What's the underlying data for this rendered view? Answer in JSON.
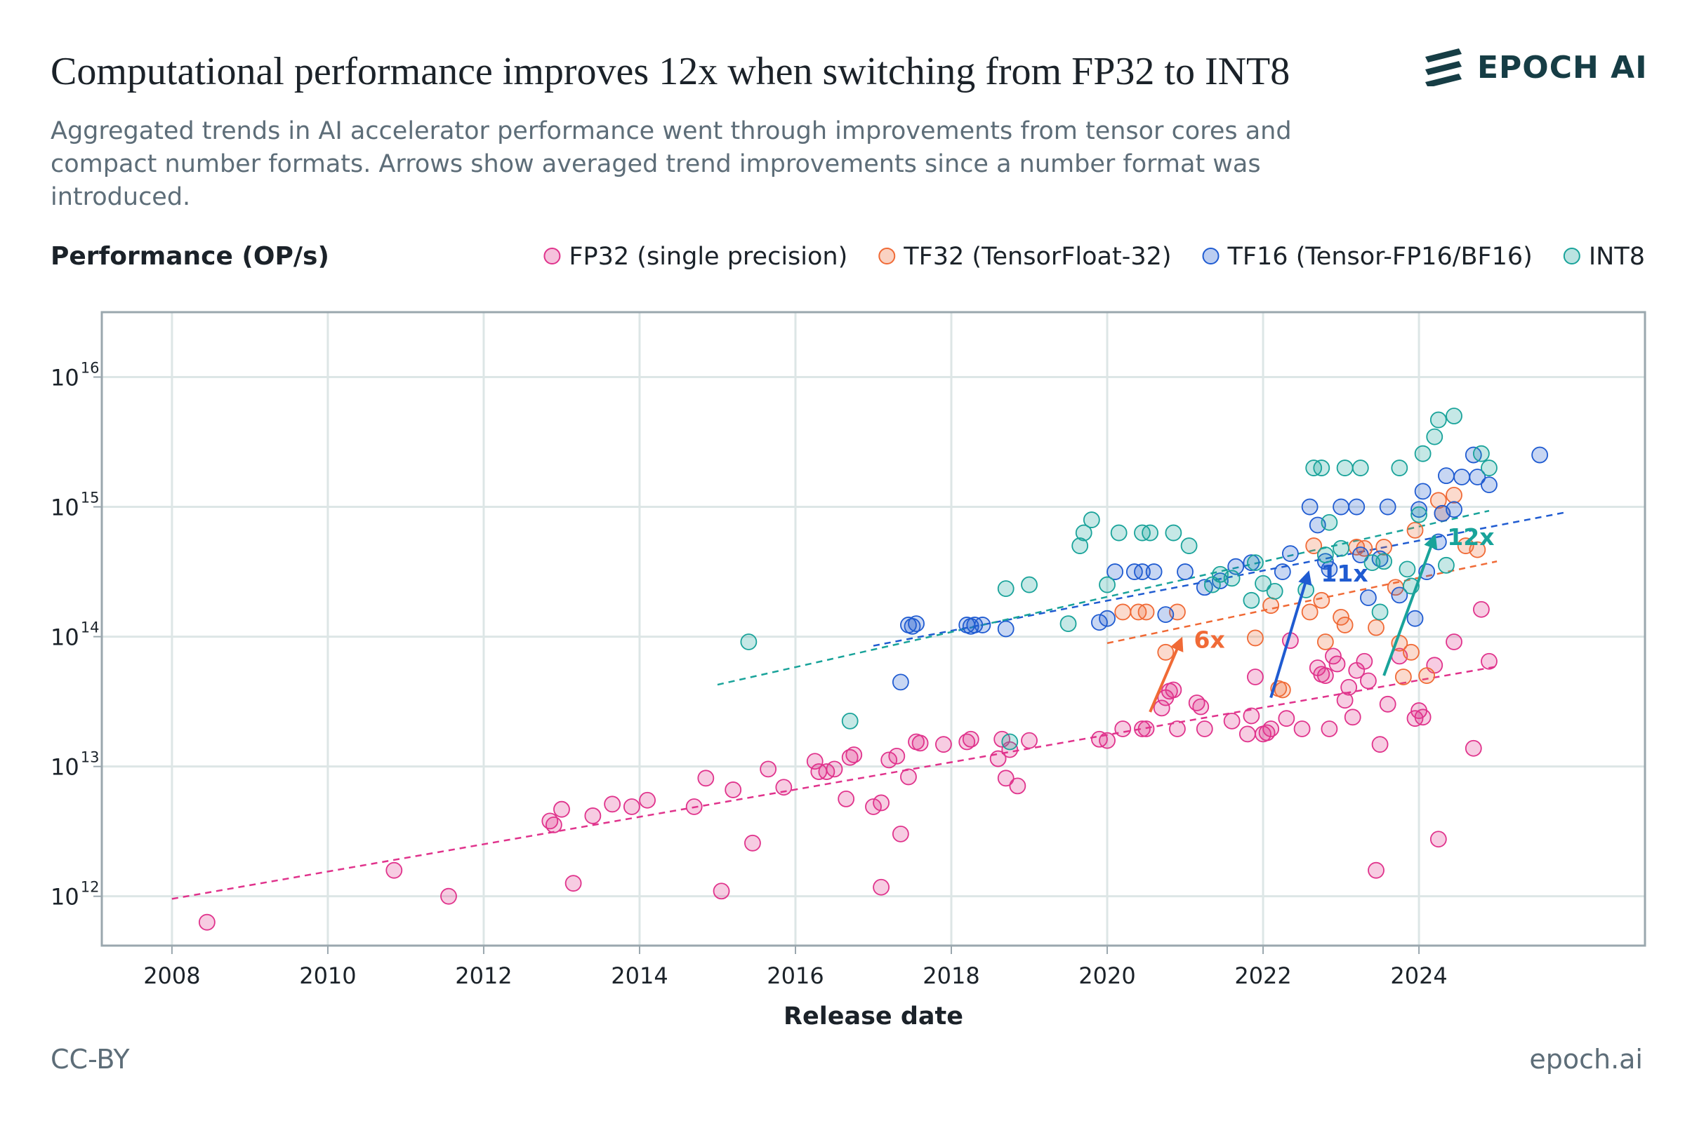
{
  "header": {
    "title": "Computational performance improves 12x when switching from FP32 to INT8",
    "subtitle": "Aggregated trends in AI accelerator performance went through improvements from tensor cores and compact number formats. Arrows show averaged trend improvements since a number format was introduced.",
    "brand": "EPOCH AI"
  },
  "footer": {
    "license": "CC-BY",
    "site": "epoch.ai"
  },
  "colors": {
    "FP32": "#e0338c",
    "TF32": "#f06a36",
    "TF16": "#1f5bd1",
    "INT8": "#19a39a",
    "grid": "#dde6e6",
    "axis": "#9aa7ae",
    "brand": "#163d45"
  },
  "chart_data": {
    "type": "scatter",
    "title": "Computational performance improves 12x when switching from FP32 to INT8",
    "xlabel": "Release date",
    "ylabel": "Performance (OP/s)",
    "yscale": "log",
    "xlim": [
      2007.1,
      2026.9
    ],
    "ylim_log10": [
      11.62,
      16.5
    ],
    "xticks": [
      2008,
      2010,
      2012,
      2014,
      2016,
      2018,
      2020,
      2022,
      2024
    ],
    "xtick_labels": [
      "2008",
      "2010",
      "2012",
      "2014",
      "2016",
      "2018",
      "2020",
      "2022",
      "2024"
    ],
    "yticks_log10": [
      12,
      13,
      14,
      15,
      16
    ],
    "ytick_base": "10",
    "ytick_exponents": [
      "12",
      "13",
      "14",
      "15",
      "16"
    ],
    "grid": true,
    "legend_position": "top-right",
    "series": [
      {
        "name": "FP32 (single precision)",
        "key": "FP32",
        "points_log10": [
          [
            2008.45,
            11.8
          ],
          [
            2010.85,
            12.2
          ],
          [
            2011.55,
            12.0
          ],
          [
            2012.85,
            12.58
          ],
          [
            2012.9,
            12.55
          ],
          [
            2013.0,
            12.67
          ],
          [
            2013.15,
            12.1
          ],
          [
            2013.4,
            12.62
          ],
          [
            2013.65,
            12.71
          ],
          [
            2013.9,
            12.69
          ],
          [
            2014.1,
            12.74
          ],
          [
            2014.7,
            12.69
          ],
          [
            2014.85,
            12.91
          ],
          [
            2015.05,
            12.04
          ],
          [
            2015.2,
            12.82
          ],
          [
            2015.45,
            12.41
          ],
          [
            2015.65,
            12.98
          ],
          [
            2015.85,
            12.84
          ],
          [
            2016.25,
            13.04
          ],
          [
            2016.3,
            12.96
          ],
          [
            2016.4,
            12.96
          ],
          [
            2016.5,
            12.98
          ],
          [
            2016.65,
            12.75
          ],
          [
            2016.7,
            13.07
          ],
          [
            2016.75,
            13.09
          ],
          [
            2017.0,
            12.69
          ],
          [
            2017.1,
            12.07
          ],
          [
            2017.1,
            12.72
          ],
          [
            2017.2,
            13.05
          ],
          [
            2017.3,
            13.08
          ],
          [
            2017.35,
            12.48
          ],
          [
            2017.45,
            12.92
          ],
          [
            2017.55,
            13.19
          ],
          [
            2017.6,
            13.18
          ],
          [
            2017.9,
            13.17
          ],
          [
            2018.2,
            13.19
          ],
          [
            2018.25,
            13.21
          ],
          [
            2018.6,
            13.06
          ],
          [
            2018.65,
            13.21
          ],
          [
            2018.7,
            12.91
          ],
          [
            2018.75,
            13.13
          ],
          [
            2018.85,
            12.85
          ],
          [
            2019.0,
            13.2
          ],
          [
            2019.9,
            13.21
          ],
          [
            2020.0,
            13.2
          ],
          [
            2020.2,
            13.29
          ],
          [
            2020.45,
            13.29
          ],
          [
            2020.5,
            13.29
          ],
          [
            2020.7,
            13.45
          ],
          [
            2020.75,
            13.53
          ],
          [
            2020.8,
            13.58
          ],
          [
            2020.85,
            13.59
          ],
          [
            2020.9,
            13.29
          ],
          [
            2021.15,
            13.49
          ],
          [
            2021.2,
            13.46
          ],
          [
            2021.25,
            13.29
          ],
          [
            2021.6,
            13.35
          ],
          [
            2021.8,
            13.25
          ],
          [
            2021.85,
            13.39
          ],
          [
            2021.9,
            13.69
          ],
          [
            2022.0,
            13.25
          ],
          [
            2022.05,
            13.26
          ],
          [
            2022.1,
            13.29
          ],
          [
            2022.3,
            13.37
          ],
          [
            2022.35,
            13.97
          ],
          [
            2022.5,
            13.29
          ],
          [
            2022.7,
            13.76
          ],
          [
            2022.75,
            13.71
          ],
          [
            2022.8,
            13.7
          ],
          [
            2022.85,
            13.29
          ],
          [
            2022.9,
            13.85
          ],
          [
            2022.95,
            13.79
          ],
          [
            2023.05,
            13.51
          ],
          [
            2023.1,
            13.61
          ],
          [
            2023.15,
            13.38
          ],
          [
            2023.2,
            13.74
          ],
          [
            2023.3,
            13.81
          ],
          [
            2023.35,
            13.66
          ],
          [
            2023.45,
            12.2
          ],
          [
            2023.5,
            13.17
          ],
          [
            2023.6,
            13.48
          ],
          [
            2023.75,
            13.85
          ],
          [
            2023.95,
            13.37
          ],
          [
            2024.0,
            13.43
          ],
          [
            2024.05,
            13.38
          ],
          [
            2024.2,
            13.78
          ],
          [
            2024.25,
            12.44
          ],
          [
            2024.45,
            13.96
          ],
          [
            2024.7,
            13.14
          ],
          [
            2024.8,
            14.21
          ],
          [
            2024.9,
            13.81
          ]
        ]
      },
      {
        "name": "TF32 (TensorFloat-32)",
        "key": "TF32",
        "points_log10": [
          [
            2020.2,
            14.19
          ],
          [
            2020.4,
            14.19
          ],
          [
            2020.5,
            14.19
          ],
          [
            2020.75,
            13.88
          ],
          [
            2020.9,
            14.19
          ],
          [
            2021.9,
            13.99
          ],
          [
            2022.1,
            14.24
          ],
          [
            2022.2,
            13.6
          ],
          [
            2022.25,
            13.59
          ],
          [
            2022.6,
            14.19
          ],
          [
            2022.65,
            14.7
          ],
          [
            2022.75,
            14.28
          ],
          [
            2022.8,
            13.96
          ],
          [
            2023.0,
            14.15
          ],
          [
            2023.05,
            14.09
          ],
          [
            2023.2,
            14.69
          ],
          [
            2023.3,
            14.68
          ],
          [
            2023.45,
            14.07
          ],
          [
            2023.55,
            14.69
          ],
          [
            2023.7,
            14.38
          ],
          [
            2023.75,
            13.95
          ],
          [
            2023.8,
            13.69
          ],
          [
            2023.9,
            13.88
          ],
          [
            2023.95,
            14.82
          ],
          [
            2024.1,
            13.7
          ],
          [
            2024.25,
            15.05
          ],
          [
            2024.3,
            14.95
          ],
          [
            2024.45,
            15.09
          ],
          [
            2024.6,
            14.7
          ],
          [
            2024.75,
            14.67
          ]
        ]
      },
      {
        "name": "TF16 (Tensor-FP16/BF16)",
        "key": "TF16",
        "points_log10": [
          [
            2017.35,
            13.65
          ],
          [
            2017.45,
            14.09
          ],
          [
            2017.5,
            14.08
          ],
          [
            2017.55,
            14.1
          ],
          [
            2018.2,
            14.09
          ],
          [
            2018.25,
            14.08
          ],
          [
            2018.3,
            14.09
          ],
          [
            2018.4,
            14.09
          ],
          [
            2018.7,
            14.06
          ],
          [
            2019.9,
            14.11
          ],
          [
            2020.0,
            14.14
          ],
          [
            2020.1,
            14.5
          ],
          [
            2020.35,
            14.5
          ],
          [
            2020.45,
            14.5
          ],
          [
            2020.6,
            14.5
          ],
          [
            2020.75,
            14.17
          ],
          [
            2021.0,
            14.5
          ],
          [
            2021.25,
            14.38
          ],
          [
            2021.45,
            14.43
          ],
          [
            2021.65,
            14.54
          ],
          [
            2021.85,
            14.57
          ],
          [
            2022.25,
            14.5
          ],
          [
            2022.35,
            14.64
          ],
          [
            2022.6,
            15.0
          ],
          [
            2022.7,
            14.86
          ],
          [
            2022.8,
            14.58
          ],
          [
            2022.85,
            14.52
          ],
          [
            2023.0,
            15.0
          ],
          [
            2023.2,
            15.0
          ],
          [
            2023.25,
            14.63
          ],
          [
            2023.35,
            14.3
          ],
          [
            2023.5,
            14.6
          ],
          [
            2023.6,
            15.0
          ],
          [
            2023.75,
            14.32
          ],
          [
            2023.95,
            14.14
          ],
          [
            2024.0,
            14.98
          ],
          [
            2024.05,
            15.12
          ],
          [
            2024.1,
            14.5
          ],
          [
            2024.25,
            14.73
          ],
          [
            2024.3,
            14.95
          ],
          [
            2024.35,
            15.24
          ],
          [
            2024.45,
            14.98
          ],
          [
            2024.55,
            15.23
          ],
          [
            2024.7,
            15.4
          ],
          [
            2024.75,
            15.23
          ],
          [
            2024.9,
            15.17
          ],
          [
            2025.55,
            15.4
          ]
        ]
      },
      {
        "name": "INT8",
        "key": "INT8",
        "points_log10": [
          [
            2015.4,
            13.96
          ],
          [
            2016.7,
            13.35
          ],
          [
            2018.75,
            13.19
          ],
          [
            2018.7,
            14.37
          ],
          [
            2019.0,
            14.4
          ],
          [
            2019.5,
            14.1
          ],
          [
            2019.65,
            14.7
          ],
          [
            2019.7,
            14.8
          ],
          [
            2019.8,
            14.9
          ],
          [
            2020.0,
            14.4
          ],
          [
            2020.15,
            14.8
          ],
          [
            2020.45,
            14.8
          ],
          [
            2020.55,
            14.8
          ],
          [
            2020.85,
            14.8
          ],
          [
            2021.05,
            14.7
          ],
          [
            2021.35,
            14.4
          ],
          [
            2021.45,
            14.48
          ],
          [
            2021.6,
            14.45
          ],
          [
            2021.85,
            14.28
          ],
          [
            2021.9,
            14.57
          ],
          [
            2022.0,
            14.41
          ],
          [
            2022.15,
            14.35
          ],
          [
            2022.55,
            14.36
          ],
          [
            2022.65,
            15.3
          ],
          [
            2022.75,
            15.3
          ],
          [
            2022.8,
            14.63
          ],
          [
            2022.85,
            14.88
          ],
          [
            2023.0,
            14.68
          ],
          [
            2023.05,
            15.3
          ],
          [
            2023.25,
            15.3
          ],
          [
            2023.4,
            14.57
          ],
          [
            2023.5,
            14.19
          ],
          [
            2023.55,
            14.58
          ],
          [
            2023.75,
            15.3
          ],
          [
            2023.85,
            14.52
          ],
          [
            2023.9,
            14.39
          ],
          [
            2024.0,
            14.94
          ],
          [
            2024.05,
            15.41
          ],
          [
            2024.2,
            15.54
          ],
          [
            2024.25,
            15.67
          ],
          [
            2024.35,
            14.55
          ],
          [
            2024.45,
            15.7
          ],
          [
            2024.8,
            15.41
          ],
          [
            2024.9,
            15.3
          ]
        ]
      }
    ],
    "trend_lines": [
      {
        "key": "FP32",
        "x": [
          2008.0,
          2025.0
        ],
        "y_log10": [
          11.98,
          13.77
        ]
      },
      {
        "key": "TF32",
        "x": [
          2020.0,
          2025.0
        ],
        "y_log10": [
          13.95,
          14.58
        ]
      },
      {
        "key": "TF16",
        "x": [
          2017.0,
          2025.9
        ],
        "y_log10": [
          13.93,
          14.96
        ]
      },
      {
        "key": "INT8",
        "x": [
          2015.0,
          2024.9
        ],
        "y_log10": [
          13.63,
          14.97
        ]
      }
    ],
    "annotations": [
      {
        "key": "TF32",
        "label": "6x",
        "from": [
          2020.55,
          13.42
        ],
        "to": [
          2020.95,
          13.98
        ]
      },
      {
        "key": "TF16",
        "label": "11x",
        "from": [
          2022.1,
          13.53
        ],
        "to": [
          2022.58,
          14.49
        ]
      },
      {
        "key": "INT8",
        "label": "12x",
        "from": [
          2023.55,
          13.7
        ],
        "to": [
          2024.2,
          14.77
        ]
      }
    ]
  }
}
